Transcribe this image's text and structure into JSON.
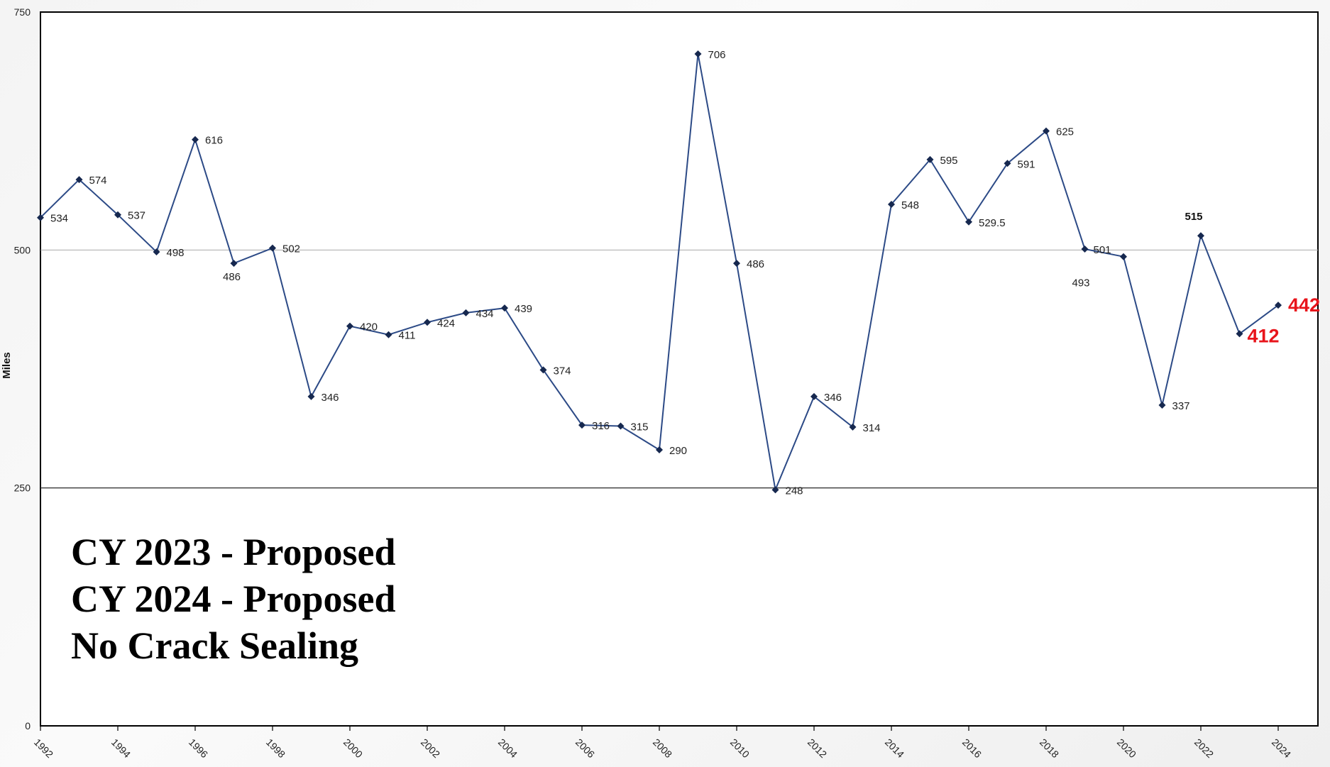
{
  "chart_data": {
    "type": "line",
    "ylabel": "Miles",
    "xlabel": "",
    "ylim": [
      0,
      750
    ],
    "yticks": [
      0,
      250,
      500,
      750
    ],
    "xticks": [
      "1992",
      "1994",
      "1996",
      "1998",
      "2000",
      "2002",
      "2004",
      "2006",
      "2008",
      "2010",
      "2012",
      "2014",
      "2016",
      "2018",
      "2020",
      "2022",
      "2024"
    ],
    "grid": "horizontal",
    "line_color": "#2c4a86",
    "marker_color": "#16284f",
    "highlight_color": "#e8141b",
    "x": [
      1992,
      1993,
      1994,
      1995,
      1996,
      1997,
      1998,
      1999,
      2000,
      2001,
      2002,
      2003,
      2004,
      2005,
      2006,
      2007,
      2008,
      2009,
      2010,
      2011,
      2012,
      2013,
      2014,
      2015,
      2016,
      2017,
      2018,
      2019,
      2020,
      2021,
      2022,
      2023,
      2024
    ],
    "values": [
      534,
      574,
      537,
      498,
      616,
      486,
      502,
      346,
      420,
      411,
      424,
      434,
      439,
      374,
      316,
      315,
      290,
      706,
      486,
      248,
      346,
      314,
      548,
      595,
      529.5,
      591,
      625,
      501,
      493,
      337,
      515,
      412,
      442
    ],
    "data_labels": [
      "534",
      "574",
      "537",
      "498",
      "616",
      "486",
      "502",
      "346",
      "420",
      "411",
      "424",
      "434",
      "439",
      "374",
      "316",
      "315",
      "290",
      "706",
      "486",
      "248",
      "346",
      "314",
      "548",
      "595",
      "529.5",
      "591",
      "625",
      "501",
      "493",
      "337",
      "515",
      "412",
      "442"
    ],
    "annotation_lines": [
      "CY 2023 - Proposed",
      "CY 2024 - Proposed",
      "No Crack Sealing"
    ]
  }
}
